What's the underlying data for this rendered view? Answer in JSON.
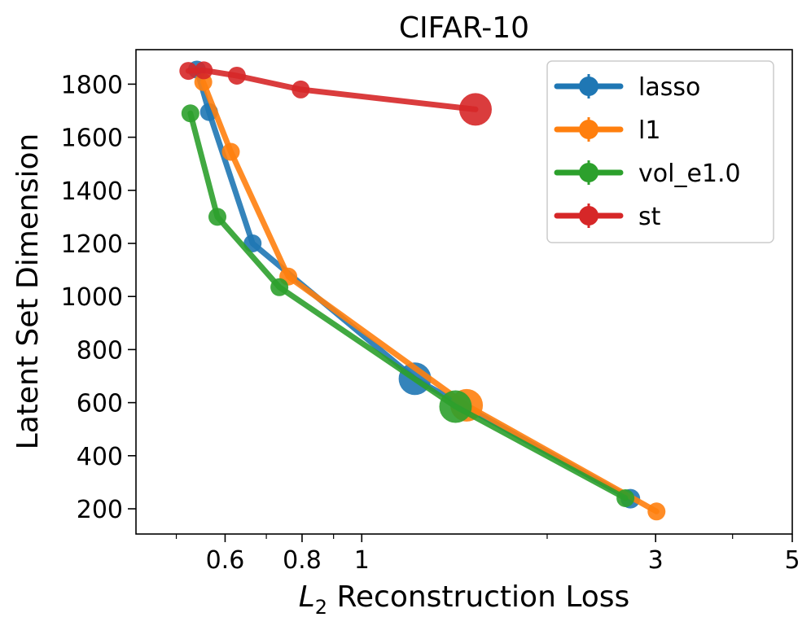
{
  "chart_data": {
    "type": "line",
    "title": "CIFAR-10",
    "xlabel_main": "L",
    "xlabel_sub": "2",
    "xlabel_rest": " Reconstruction Loss",
    "ylabel": "Latent Set Dimension",
    "xscale": "log",
    "xlim": [
      0.43,
      5
    ],
    "ylim": [
      105,
      1930
    ],
    "xticks": [
      0.6,
      0.8,
      1,
      3,
      5
    ],
    "xtick_labels": [
      "0.6",
      "0.8",
      "1",
      "3",
      "5"
    ],
    "yticks": [
      200,
      400,
      600,
      800,
      1000,
      1200,
      1400,
      1600,
      1800
    ],
    "ytick_labels": [
      "200",
      "400",
      "600",
      "800",
      "1000",
      "1200",
      "1400",
      "1600",
      "1800"
    ],
    "legend_position": "top-right",
    "series": [
      {
        "name": "lasso",
        "color": "#1f77b4",
        "points": [
          {
            "x": 0.54,
            "y": 1855,
            "size": 11
          },
          {
            "x": 0.565,
            "y": 1695,
            "size": 11
          },
          {
            "x": 0.665,
            "y": 1200,
            "size": 11
          },
          {
            "x": 1.22,
            "y": 690,
            "size": 20
          },
          {
            "x": 2.73,
            "y": 238,
            "size": 12
          }
        ]
      },
      {
        "name": "l1",
        "color": "#ff7f0e",
        "points": [
          {
            "x": 0.553,
            "y": 1808,
            "size": 11
          },
          {
            "x": 0.613,
            "y": 1545,
            "size": 11
          },
          {
            "x": 0.76,
            "y": 1075,
            "size": 11
          },
          {
            "x": 1.48,
            "y": 590,
            "size": 20
          },
          {
            "x": 3.01,
            "y": 190,
            "size": 11
          }
        ]
      },
      {
        "name": "vol_e1.0",
        "color": "#2ca02c",
        "points": [
          {
            "x": 0.527,
            "y": 1690,
            "size": 11
          },
          {
            "x": 0.583,
            "y": 1300,
            "size": 11
          },
          {
            "x": 0.735,
            "y": 1035,
            "size": 11
          },
          {
            "x": 1.42,
            "y": 585,
            "size": 20
          },
          {
            "x": 2.68,
            "y": 240,
            "size": 11
          }
        ]
      },
      {
        "name": "st",
        "color": "#d62728",
        "points": [
          {
            "x": 0.523,
            "y": 1850,
            "size": 11
          },
          {
            "x": 0.554,
            "y": 1852,
            "size": 11
          },
          {
            "x": 0.627,
            "y": 1832,
            "size": 11
          },
          {
            "x": 0.796,
            "y": 1780,
            "size": 11
          },
          {
            "x": 1.53,
            "y": 1705,
            "size": 20
          }
        ]
      }
    ]
  }
}
